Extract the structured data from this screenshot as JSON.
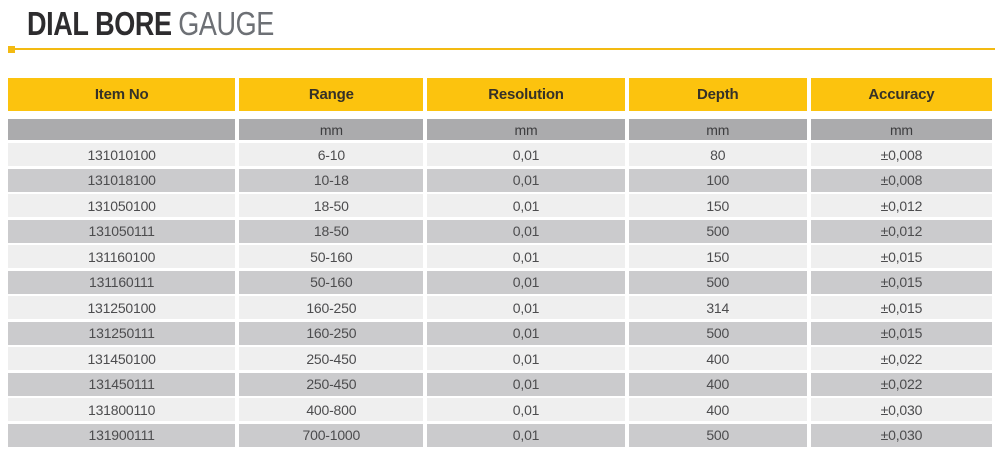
{
  "page": {
    "title_primary": "DIAL BORE",
    "title_secondary": "GAUGE"
  },
  "colors": {
    "accent_yellow": "#fcc30e",
    "divider_gold": "#f3ba12",
    "units_row_gray": "#ababad",
    "row_light": "#efefef",
    "row_dark": "#cbcbcd",
    "header_text": "#353128",
    "data_text": "#4c4c4e"
  },
  "table": {
    "columns": [
      "Item No",
      "Range",
      "Resolution",
      "Depth",
      "Accuracy"
    ],
    "units": [
      "",
      "mm",
      "mm",
      "mm",
      "mm"
    ],
    "rows": [
      [
        "131010100",
        "6-10",
        "0,01",
        "80",
        "±0,008"
      ],
      [
        "131018100",
        "10-18",
        "0,01",
        "100",
        "±0,008"
      ],
      [
        "131050100",
        "18-50",
        "0,01",
        "150",
        "±0,012"
      ],
      [
        "131050111",
        "18-50",
        "0,01",
        "500",
        "±0,012"
      ],
      [
        "131160100",
        "50-160",
        "0,01",
        "150",
        "±0,015"
      ],
      [
        "131160111",
        "50-160",
        "0,01",
        "500",
        "±0,015"
      ],
      [
        "131250100",
        "160-250",
        "0,01",
        "314",
        "±0,015"
      ],
      [
        "131250111",
        "160-250",
        "0,01",
        "500",
        "±0,015"
      ],
      [
        "131450100",
        "250-450",
        "0,01",
        "400",
        "±0,022"
      ],
      [
        "131450111",
        "250-450",
        "0,01",
        "400",
        "±0,022"
      ],
      [
        "131800110",
        "400-800",
        "0,01",
        "400",
        "±0,030"
      ],
      [
        "131900111",
        "700-1000",
        "0,01",
        "500",
        "±0,030"
      ]
    ]
  }
}
